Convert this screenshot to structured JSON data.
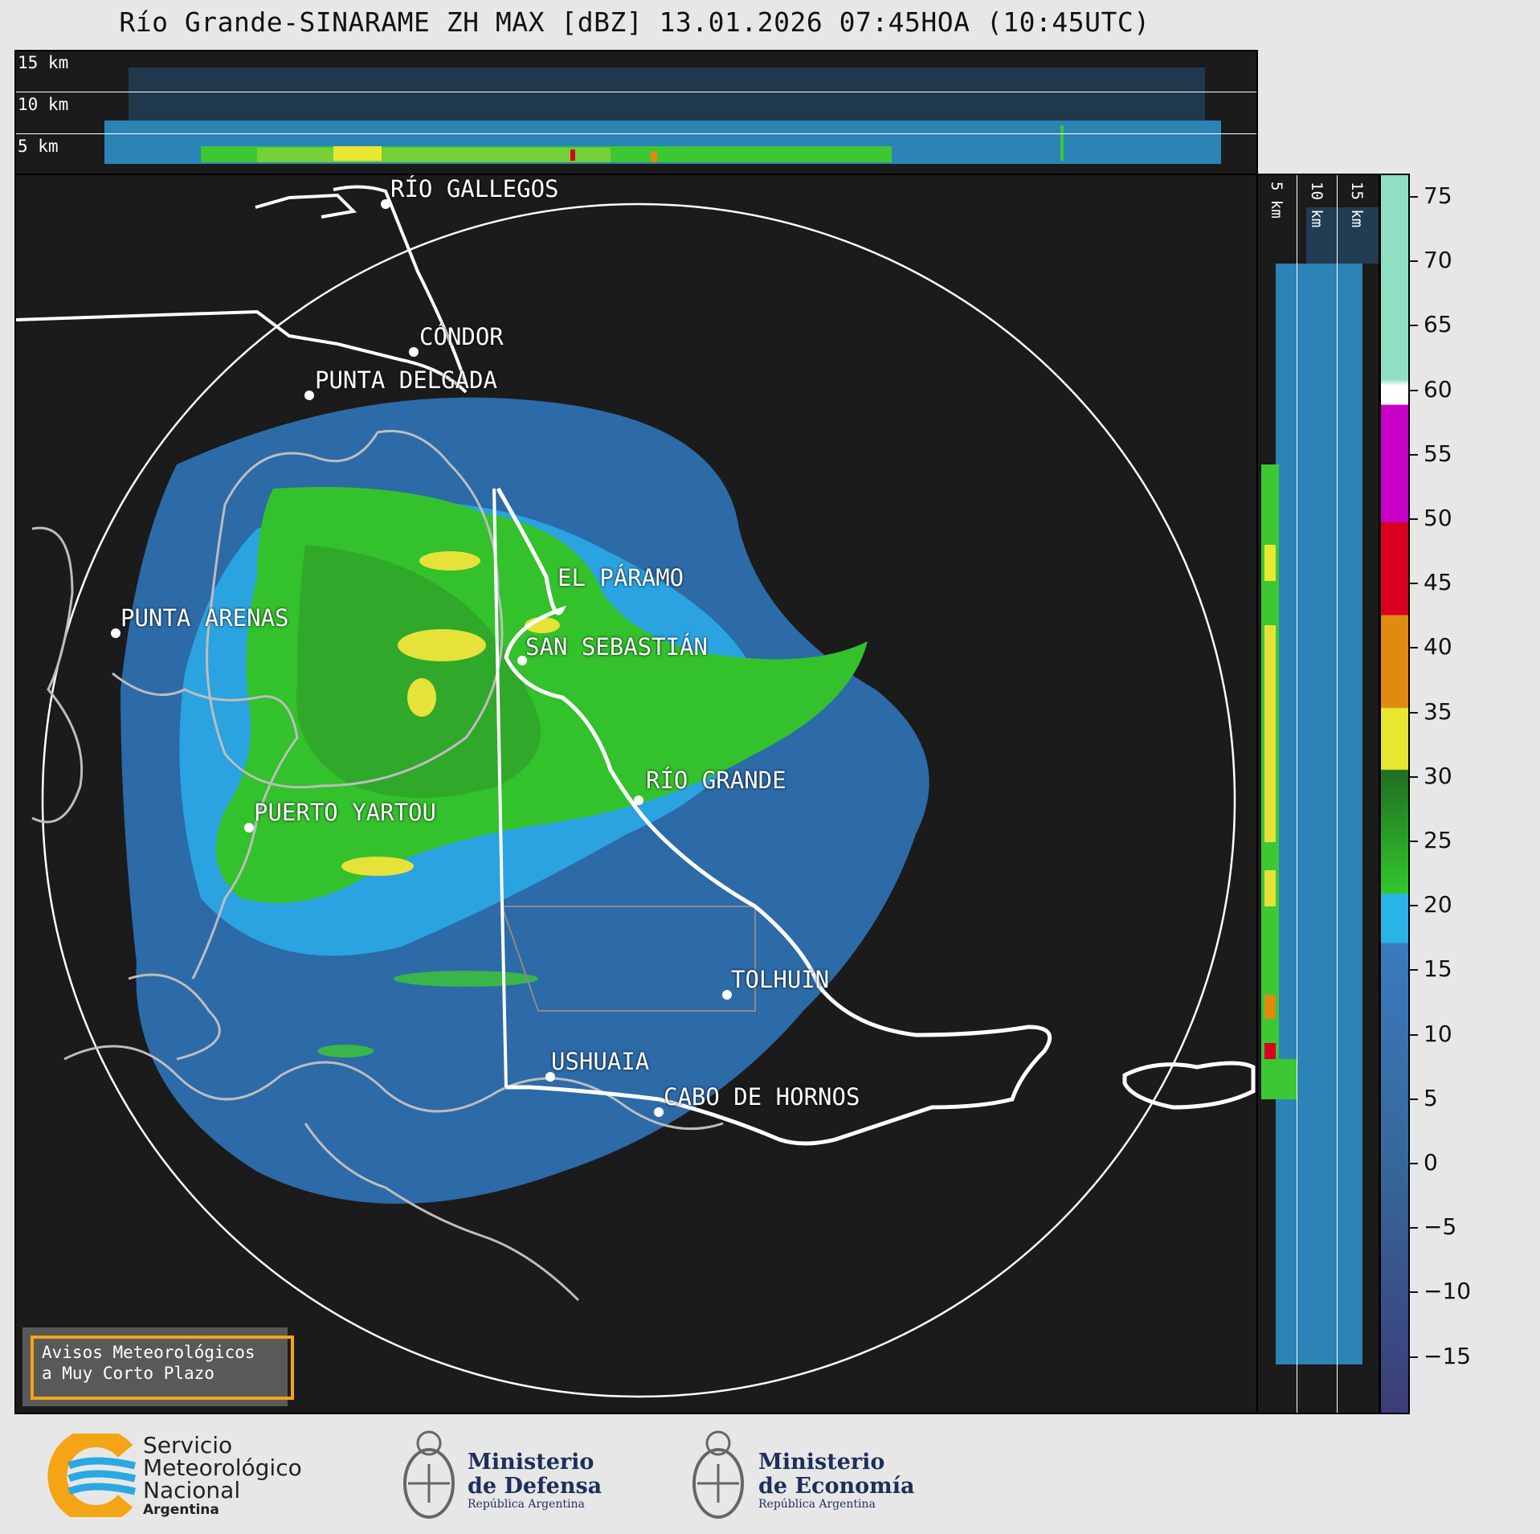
{
  "header": {
    "title": "Río Grande-SINARAME ZH MAX [dBZ] 13.01.2026 07:45HOA (10:45UTC)"
  },
  "top_panel": {
    "height_labels": [
      "15 km",
      "10 km",
      "5 km"
    ]
  },
  "side_panel": {
    "height_labels": [
      "5 km",
      "10 km",
      "15 km"
    ]
  },
  "map": {
    "cities": [
      {
        "name": "RÍO GALLEGOS"
      },
      {
        "name": "CÓNDOR"
      },
      {
        "name": "PUNTA DELGADA"
      },
      {
        "name": "PUNTA ARENAS"
      },
      {
        "name": "EL PÁRAMO"
      },
      {
        "name": "SAN SEBASTIÁN"
      },
      {
        "name": "RÍO GRANDE"
      },
      {
        "name": "PUERTO YARTOU"
      },
      {
        "name": "TOLHUIN"
      },
      {
        "name": "USHUAIA"
      },
      {
        "name": "CABO DE HORNOS"
      }
    ],
    "aviso": {
      "line1": "Avisos Meteorológicos",
      "line2": "a Muy Corto Plazo"
    }
  },
  "colorbar": {
    "unit": "dBZ",
    "ticks": [
      "75",
      "70",
      "65",
      "60",
      "55",
      "50",
      "45",
      "40",
      "35",
      "30",
      "25",
      "20",
      "15",
      "10",
      "5",
      "0",
      "−5",
      "−10",
      "−15"
    ],
    "colors": {
      "cyan_high": "#8fe0c2",
      "white": "#ffffff",
      "magenta": "#c800c8",
      "red": "#d8001e",
      "orange": "#e08a10",
      "yellow": "#e8e830",
      "green": "#32c82a",
      "cyan": "#28b4e6",
      "blue": "#3a7abf",
      "navy": "#3c3c78"
    }
  },
  "footer": {
    "smn": {
      "line1": "Servicio",
      "line2": "Meteorológico",
      "line3": "Nacional",
      "line4": "Argentina"
    },
    "defensa": {
      "line1": "Ministerio",
      "line2": "de Defensa",
      "line3": "República Argentina"
    },
    "economia": {
      "line1": "Ministerio",
      "line2": "de Economía",
      "line3": "República Argentina"
    }
  }
}
